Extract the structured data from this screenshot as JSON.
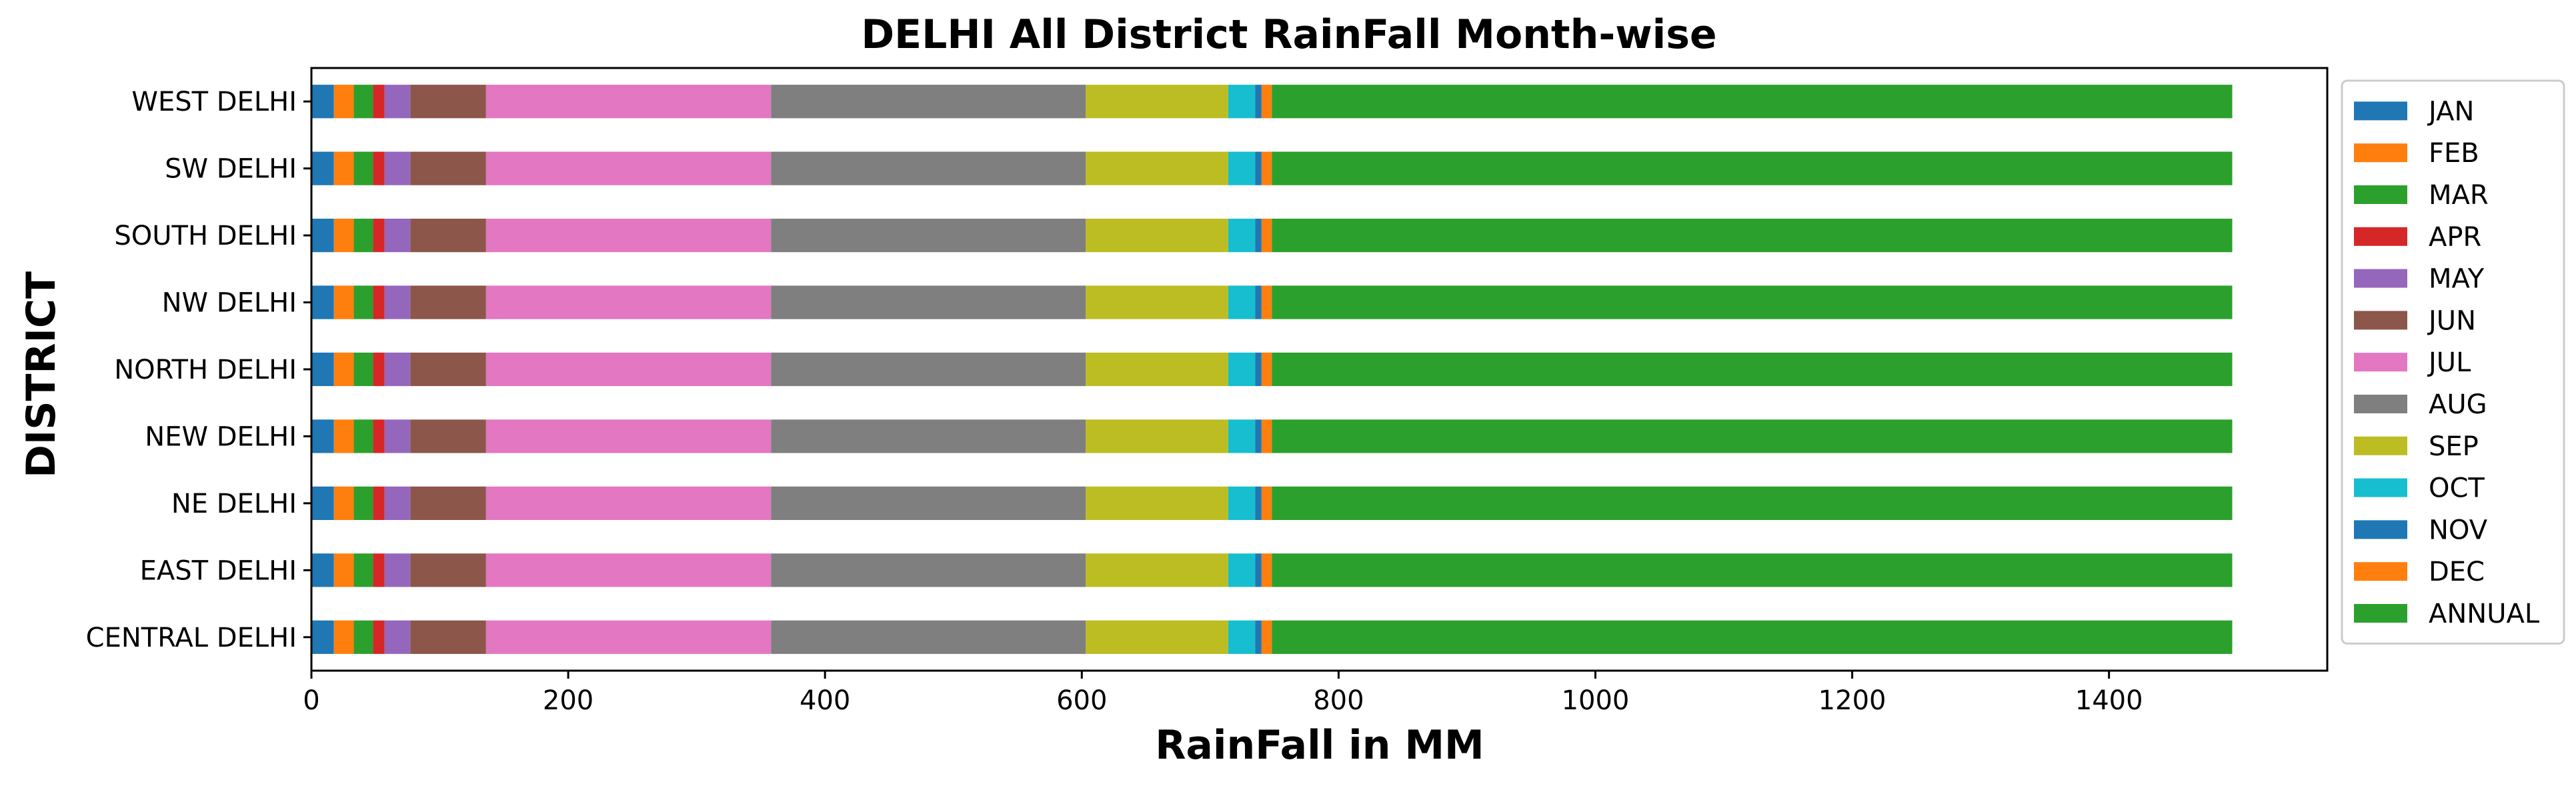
{
  "chart_data": {
    "type": "bar",
    "orientation": "horizontal",
    "stacked": true,
    "title": "DELHI All District RainFall Month-wise",
    "xlabel": "RainFall in MM",
    "ylabel": "DISTRICT",
    "xlim": [
      0,
      1570
    ],
    "xticks": [
      0,
      200,
      400,
      600,
      800,
      1000,
      1200,
      1400
    ],
    "grid": false,
    "legend_position": "right",
    "categories": [
      "CENTRAL DELHI",
      "EAST DELHI",
      "NE DELHI",
      "NEW DELHI",
      "NORTH DELHI",
      "NW DELHI",
      "SOUTH DELHI",
      "SW DELHI",
      "WEST DELHI"
    ],
    "series": [
      {
        "name": "JAN",
        "color": "#1f77b4",
        "values": [
          17.5,
          17.5,
          17.5,
          17.5,
          17.5,
          17.5,
          17.5,
          17.5,
          17.5
        ]
      },
      {
        "name": "FEB",
        "color": "#ff7f0e",
        "values": [
          15.5,
          15.5,
          15.5,
          15.5,
          15.5,
          15.5,
          15.5,
          15.5,
          15.5
        ]
      },
      {
        "name": "MAR",
        "color": "#2ca02c",
        "values": [
          15.0,
          15.0,
          15.0,
          15.0,
          15.0,
          15.0,
          15.0,
          15.0,
          15.0
        ]
      },
      {
        "name": "APR",
        "color": "#d62728",
        "values": [
          9.0,
          9.0,
          9.0,
          9.0,
          9.0,
          9.0,
          9.0,
          9.0,
          9.0
        ]
      },
      {
        "name": "MAY",
        "color": "#9467bd",
        "values": [
          20.0,
          20.0,
          20.0,
          20.0,
          20.0,
          20.0,
          20.0,
          20.0,
          20.0
        ]
      },
      {
        "name": "JUN",
        "color": "#8c564b",
        "values": [
          59.0,
          59.0,
          59.0,
          59.0,
          59.0,
          59.0,
          59.0,
          59.0,
          59.0
        ]
      },
      {
        "name": "JUL",
        "color": "#e377c2",
        "values": [
          222.0,
          222.0,
          222.0,
          222.0,
          222.0,
          222.0,
          222.0,
          222.0,
          222.0
        ]
      },
      {
        "name": "AUG",
        "color": "#7f7f7f",
        "values": [
          245.0,
          245.0,
          245.0,
          245.0,
          245.0,
          245.0,
          245.0,
          245.0,
          245.0
        ]
      },
      {
        "name": "SEP",
        "color": "#bcbd22",
        "values": [
          111.0,
          111.0,
          111.0,
          111.0,
          111.0,
          111.0,
          111.0,
          111.0,
          111.0
        ]
      },
      {
        "name": "OCT",
        "color": "#17becf",
        "values": [
          21.0,
          21.0,
          21.0,
          21.0,
          21.0,
          21.0,
          21.0,
          21.0,
          21.0
        ]
      },
      {
        "name": "NOV",
        "color": "#1f77b4",
        "values": [
          5.0,
          5.0,
          5.0,
          5.0,
          5.0,
          5.0,
          5.0,
          5.0,
          5.0
        ]
      },
      {
        "name": "DEC",
        "color": "#ff7f0e",
        "values": [
          8.0,
          8.0,
          8.0,
          8.0,
          8.0,
          8.0,
          8.0,
          8.0,
          8.0
        ]
      },
      {
        "name": "ANNUAL",
        "color": "#2ca02c",
        "values": [
          748.0,
          748.0,
          748.0,
          748.0,
          748.0,
          748.0,
          748.0,
          748.0,
          748.0
        ]
      }
    ]
  }
}
